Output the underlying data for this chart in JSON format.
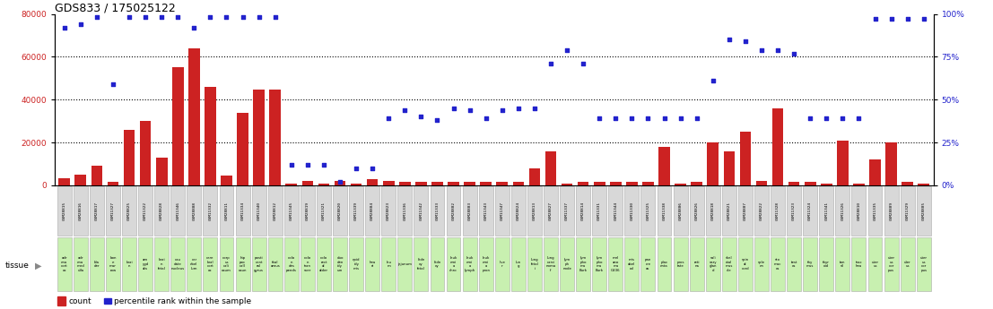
{
  "title": "GDS833 / 175025122",
  "samples": [
    "GSM28815",
    "GSM28816",
    "GSM28817",
    "GSM11327",
    "GSM28825",
    "GSM11322",
    "GSM28828",
    "GSM11346",
    "GSM28808",
    "GSM11332",
    "GSM28811",
    "GSM11334",
    "GSM11340",
    "GSM28812",
    "GSM11345",
    "GSM28819",
    "GSM11321",
    "GSM28820",
    "GSM11339",
    "GSM28804",
    "GSM28823",
    "GSM11336",
    "GSM11342",
    "GSM11333",
    "GSM28802",
    "GSM28803",
    "GSM11343",
    "GSM11347",
    "GSM28824",
    "GSM28813",
    "GSM28827",
    "GSM11337",
    "GSM28814",
    "GSM11331",
    "GSM11344",
    "GSM11330",
    "GSM11325",
    "GSM11338",
    "GSM28806",
    "GSM28826",
    "GSM28818",
    "GSM28821",
    "GSM28807",
    "GSM28822",
    "GSM11328",
    "GSM11323",
    "GSM11324",
    "GSM11341",
    "GSM11326",
    "GSM28810",
    "GSM11335",
    "GSM28809",
    "GSM11329",
    "GSM28805"
  ],
  "tissues": [
    "adr\nena\ncort\nex",
    "adr\nena\nmed\nulla",
    "bla\nder",
    "bon\ne\nmar\nrow",
    "brai\nn",
    "am\nygd\nala",
    "brai\nn\nfetal",
    "cau\ndate\nnucleus",
    "cer\nebel\nlum",
    "cere\nbral\ncort\nex",
    "corp\nus\ncali\nosum",
    "hip\npoc\ncall\nosun",
    "posti\ncent\nral\ngyrus",
    "thal\namus",
    "colo\nn\ndes\npends",
    "colo\nn\ntran\nsver",
    "colo\nrect\nal\nalder",
    "duo\nden\nidy\num",
    "epid\nidy\nmis",
    "hea\nrt",
    "leu\nm",
    "jejunum",
    "kidn\ney\nfetal",
    "kidn\ney",
    "leuk\nemi\na\nchro",
    "leuk\nemi\na\nlymph",
    "leuk\nemi\na\npron",
    "live\nr",
    "lun\ng",
    "lung\nfetal\ni",
    "lung\ncarci\nnoma\nf",
    "lym\nph\nnode",
    "lym\npho\nma\nBurk",
    "lym\npho\nma\nBurk",
    "mel\nano\nma\nG336",
    "mis\nabel\ned",
    "pan\ncre\nas",
    "plac\nenta",
    "pros\ntate",
    "reti\nna",
    "sali\nvary\nglan\nd",
    "skel\netal\nmus\ncle",
    "spin\nal\ncord",
    "sple\nen",
    "sto\nmac\nes",
    "test\nes",
    "thy\nmus",
    "thyr\noid",
    "ton\nsil",
    "trac\nhea",
    "uter\nus",
    "uter\nus\ncor\npus",
    "uler\nus",
    "uter\nus\ncor\npus"
  ],
  "counts": [
    3500,
    5000,
    9000,
    1500,
    26000,
    30000,
    13000,
    55000,
    64000,
    46000,
    4500,
    34000,
    44500,
    44500,
    1000,
    2000,
    1000,
    2000,
    1000,
    3000,
    2000,
    1500,
    1500,
    1500,
    1500,
    1500,
    1500,
    1500,
    1500,
    8000,
    16000,
    1000,
    1500,
    1500,
    1500,
    1500,
    1500,
    18000,
    1000,
    1500,
    20000,
    16000,
    25000,
    2000,
    36000,
    1500,
    1500,
    1000,
    21000,
    1000,
    12000,
    20000,
    1500,
    1000
  ],
  "percentiles": [
    92,
    94,
    98,
    59,
    98,
    98,
    98,
    98,
    92,
    98,
    98,
    98,
    98,
    98,
    12,
    12,
    12,
    2,
    10,
    10,
    39,
    44,
    40,
    38,
    45,
    44,
    39,
    44,
    45,
    45,
    71,
    79,
    71,
    39,
    39,
    39,
    39,
    39,
    39,
    39,
    61,
    85,
    84,
    79,
    79,
    77,
    39,
    39,
    39,
    39,
    97,
    97,
    97,
    97
  ],
  "bar_color": "#cc2222",
  "dot_color": "#2222cc",
  "label_bg_gray": "#d8d8d8",
  "label_bg_green": "#c8f0b0"
}
